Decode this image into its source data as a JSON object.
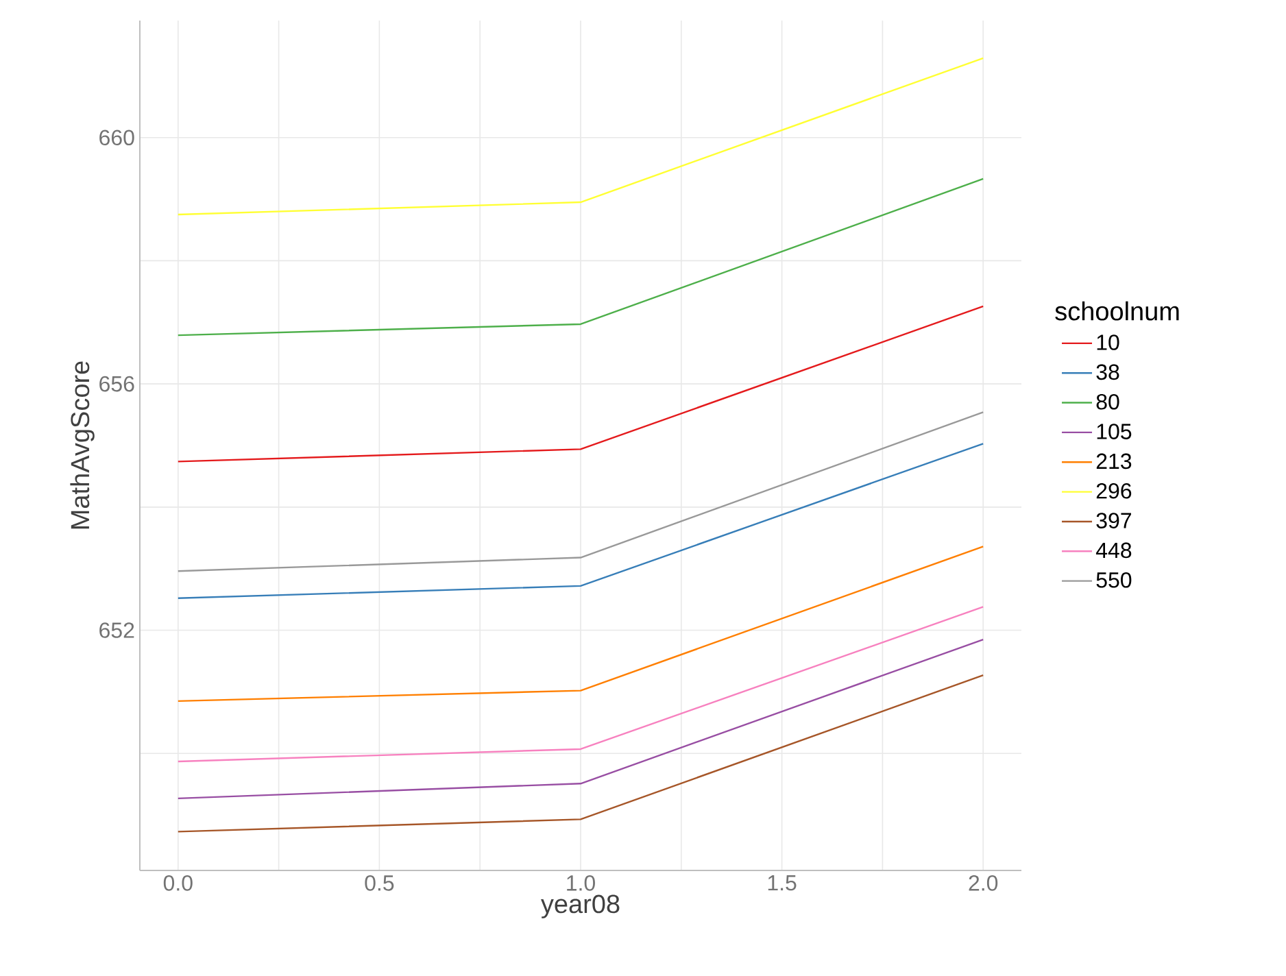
{
  "chart_data": {
    "type": "line",
    "xlabel": "year08",
    "ylabel": "MathAvgScore",
    "legend_title": "schoolnum",
    "x": [
      0,
      1,
      2
    ],
    "series": [
      {
        "name": "10",
        "color": "#e41a1c",
        "values": [
          654.74,
          654.94,
          657.26
        ]
      },
      {
        "name": "38",
        "color": "#377eb8",
        "values": [
          652.52,
          652.72,
          655.03
        ]
      },
      {
        "name": "80",
        "color": "#4daf4a",
        "values": [
          656.79,
          656.97,
          659.33
        ]
      },
      {
        "name": "105",
        "color": "#984ea3",
        "values": [
          649.27,
          649.51,
          651.85
        ]
      },
      {
        "name": "213",
        "color": "#ff7f00",
        "values": [
          650.85,
          651.02,
          653.36
        ]
      },
      {
        "name": "296",
        "color": "#ffff33",
        "values": [
          658.75,
          658.95,
          661.29
        ]
      },
      {
        "name": "397",
        "color": "#a65628",
        "values": [
          648.73,
          648.93,
          651.27
        ]
      },
      {
        "name": "448",
        "color": "#f781bf",
        "values": [
          649.87,
          650.07,
          652.38
        ]
      },
      {
        "name": "550",
        "color": "#999999",
        "values": [
          652.96,
          653.18,
          655.54
        ]
      }
    ],
    "xlim": [
      -0.095,
      2.095
    ],
    "ylim": [
      648.1,
      661.9
    ],
    "xticks": [
      {
        "value": 0,
        "label": "0.0"
      },
      {
        "value": 0.25,
        "label": null
      },
      {
        "value": 0.5,
        "label": "0.5"
      },
      {
        "value": 0.75,
        "label": null
      },
      {
        "value": 1,
        "label": "1.0"
      },
      {
        "value": 1.25,
        "label": null
      },
      {
        "value": 1.5,
        "label": "1.5"
      },
      {
        "value": 1.75,
        "label": null
      },
      {
        "value": 2,
        "label": "2.0"
      }
    ],
    "yticks": [
      {
        "value": 650,
        "label": null
      },
      652,
      {
        "value": 654,
        "label": null
      },
      656,
      {
        "value": 658,
        "label": null
      },
      660
    ],
    "grid": true,
    "legend": "right"
  }
}
